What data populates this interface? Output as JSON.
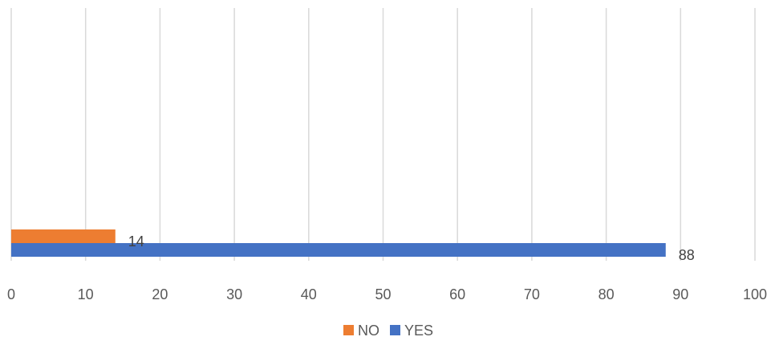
{
  "chart_data": {
    "type": "bar",
    "orientation": "horizontal",
    "categories": [
      ""
    ],
    "series": [
      {
        "name": "NO",
        "values": [
          14
        ],
        "color": "#ED7D31"
      },
      {
        "name": "YES",
        "values": [
          88
        ],
        "color": "#4472C4"
      }
    ],
    "xlim": [
      0,
      100
    ],
    "x_ticks": [
      "0",
      "10",
      "20",
      "30",
      "40",
      "50",
      "60",
      "70",
      "80",
      "90",
      "100"
    ],
    "grid": true,
    "legend_position": "bottom",
    "data_labels": true,
    "gridline_color": "#d9d9d9"
  }
}
